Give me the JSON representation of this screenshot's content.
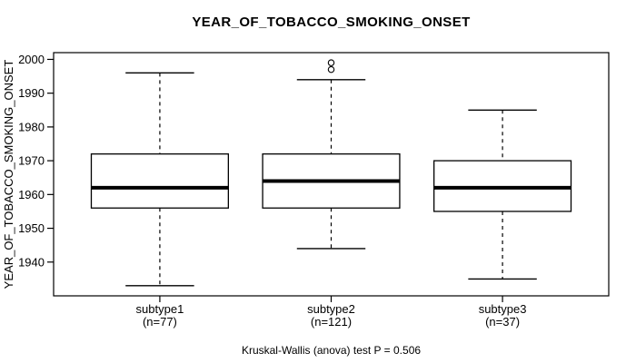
{
  "figure": {
    "title": "YEAR_OF_TOBACCO_SMOKING_ONSET",
    "y_axis_label": "YEAR_OF_TOBACCO_SMOKING_ONSET",
    "caption": "Kruskal-Wallis (anova) test P = 0.506",
    "background_color": "#ffffff",
    "foreground_color": "#000000"
  },
  "chart_data": {
    "type": "boxplot",
    "title": "YEAR_OF_TOBACCO_SMOKING_ONSET",
    "xlabel": "",
    "ylabel": "YEAR_OF_TOBACCO_SMOKING_ONSET",
    "categories": [
      "subtype1",
      "subtype2",
      "subtype3"
    ],
    "yticks": [
      1940,
      1950,
      1960,
      1970,
      1980,
      1990,
      2000
    ],
    "ylim": [
      1930,
      2002
    ],
    "grid": false,
    "legend": "none",
    "annotation": "Kruskal-Wallis (anova) test P = 0.506",
    "series": [
      {
        "name": "subtype1",
        "n": 77,
        "n_label": "(n=77)",
        "whisker_low": 1933,
        "q1": 1956,
        "median": 1962,
        "q3": 1972,
        "whisker_high": 1996,
        "outliers": []
      },
      {
        "name": "subtype2",
        "n": 121,
        "n_label": "(n=121)",
        "whisker_low": 1944,
        "q1": 1956,
        "median": 1964,
        "q3": 1972,
        "whisker_high": 1994,
        "outliers": [
          1997,
          1999
        ]
      },
      {
        "name": "subtype3",
        "n": 37,
        "n_label": "(n=37)",
        "whisker_low": 1935,
        "q1": 1955,
        "median": 1962,
        "q3": 1970,
        "whisker_high": 1985,
        "outliers": []
      }
    ]
  }
}
